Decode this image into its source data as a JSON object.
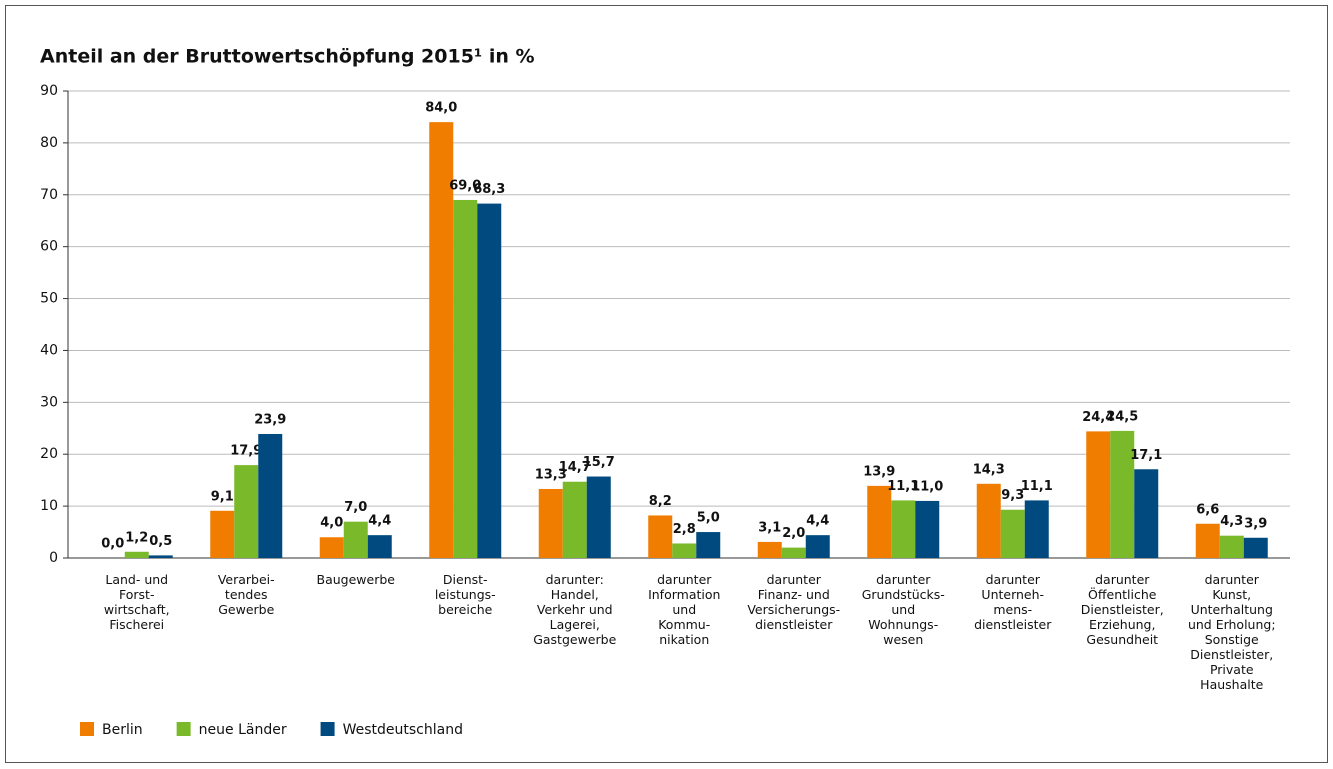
{
  "chart_data": {
    "type": "bar",
    "title": "Anteil an der Bruttowertschöpfung 2015¹ in %",
    "categories": [
      "Land- und\nForst-\nwirtschaft,\nFischerei",
      "Verarbei-\ntendes\nGewerbe",
      "Baugewerbe",
      "Dienst-\nleistungs-\nbereiche",
      "darunter:\nHandel,\nVerkehr und\nLagerei,\nGastgewerbe",
      "darunter\nInformation\nund\nKommu-\nnikation",
      "darunter\nFinanz- und\nVersicherungs-\ndienstleister",
      "darunter\nGrundstücks-\nund\nWohnungs-\nwesen",
      "darunter\nUnterneh-\nmens-\ndienstleister",
      "darunter\nÖffentliche\nDienstleister,\nErziehung,\nGesundheit",
      "darunter\nKunst,\nUnterhaltung\nund Erholung;\nSonstige\nDienstleister,\nPrivate\nHaushalte"
    ],
    "series": [
      {
        "name": "Berlin",
        "color": "#f07d00",
        "values": [
          0.0,
          9.1,
          4.0,
          84.0,
          13.3,
          8.2,
          3.1,
          13.9,
          14.3,
          24.4,
          6.6
        ],
        "value_labels": [
          "0,0",
          "9,1",
          "4,0",
          "84,0",
          "13,3",
          "8,2",
          "3,1",
          "13,9",
          "14,3",
          "24,4",
          "6,6"
        ]
      },
      {
        "name": "neue Länder",
        "color": "#7ab929",
        "values": [
          1.2,
          17.9,
          7.0,
          69.0,
          14.7,
          2.8,
          2.0,
          11.1,
          9.3,
          24.5,
          4.3
        ],
        "value_labels": [
          "1,2",
          "17,9",
          "7,0",
          "69,0",
          "14,7",
          "2,8",
          "2,0",
          "11,1",
          "9,3",
          "24,5",
          "4,3"
        ]
      },
      {
        "name": "Westdeutschland",
        "color": "#004a7f",
        "values": [
          0.5,
          23.9,
          4.4,
          68.3,
          15.7,
          5.0,
          4.4,
          11.0,
          11.1,
          17.1,
          3.9
        ],
        "value_labels": [
          "0,5",
          "23,9",
          "4,4",
          "68,3",
          "15,7",
          "5,0",
          "4,4",
          "11,0",
          "11,1",
          "17,1",
          "3,9"
        ]
      }
    ],
    "ylim": [
      0,
      90
    ],
    "yticks": [
      0,
      10,
      20,
      30,
      40,
      50,
      60,
      70,
      80,
      90
    ],
    "grid": true
  }
}
